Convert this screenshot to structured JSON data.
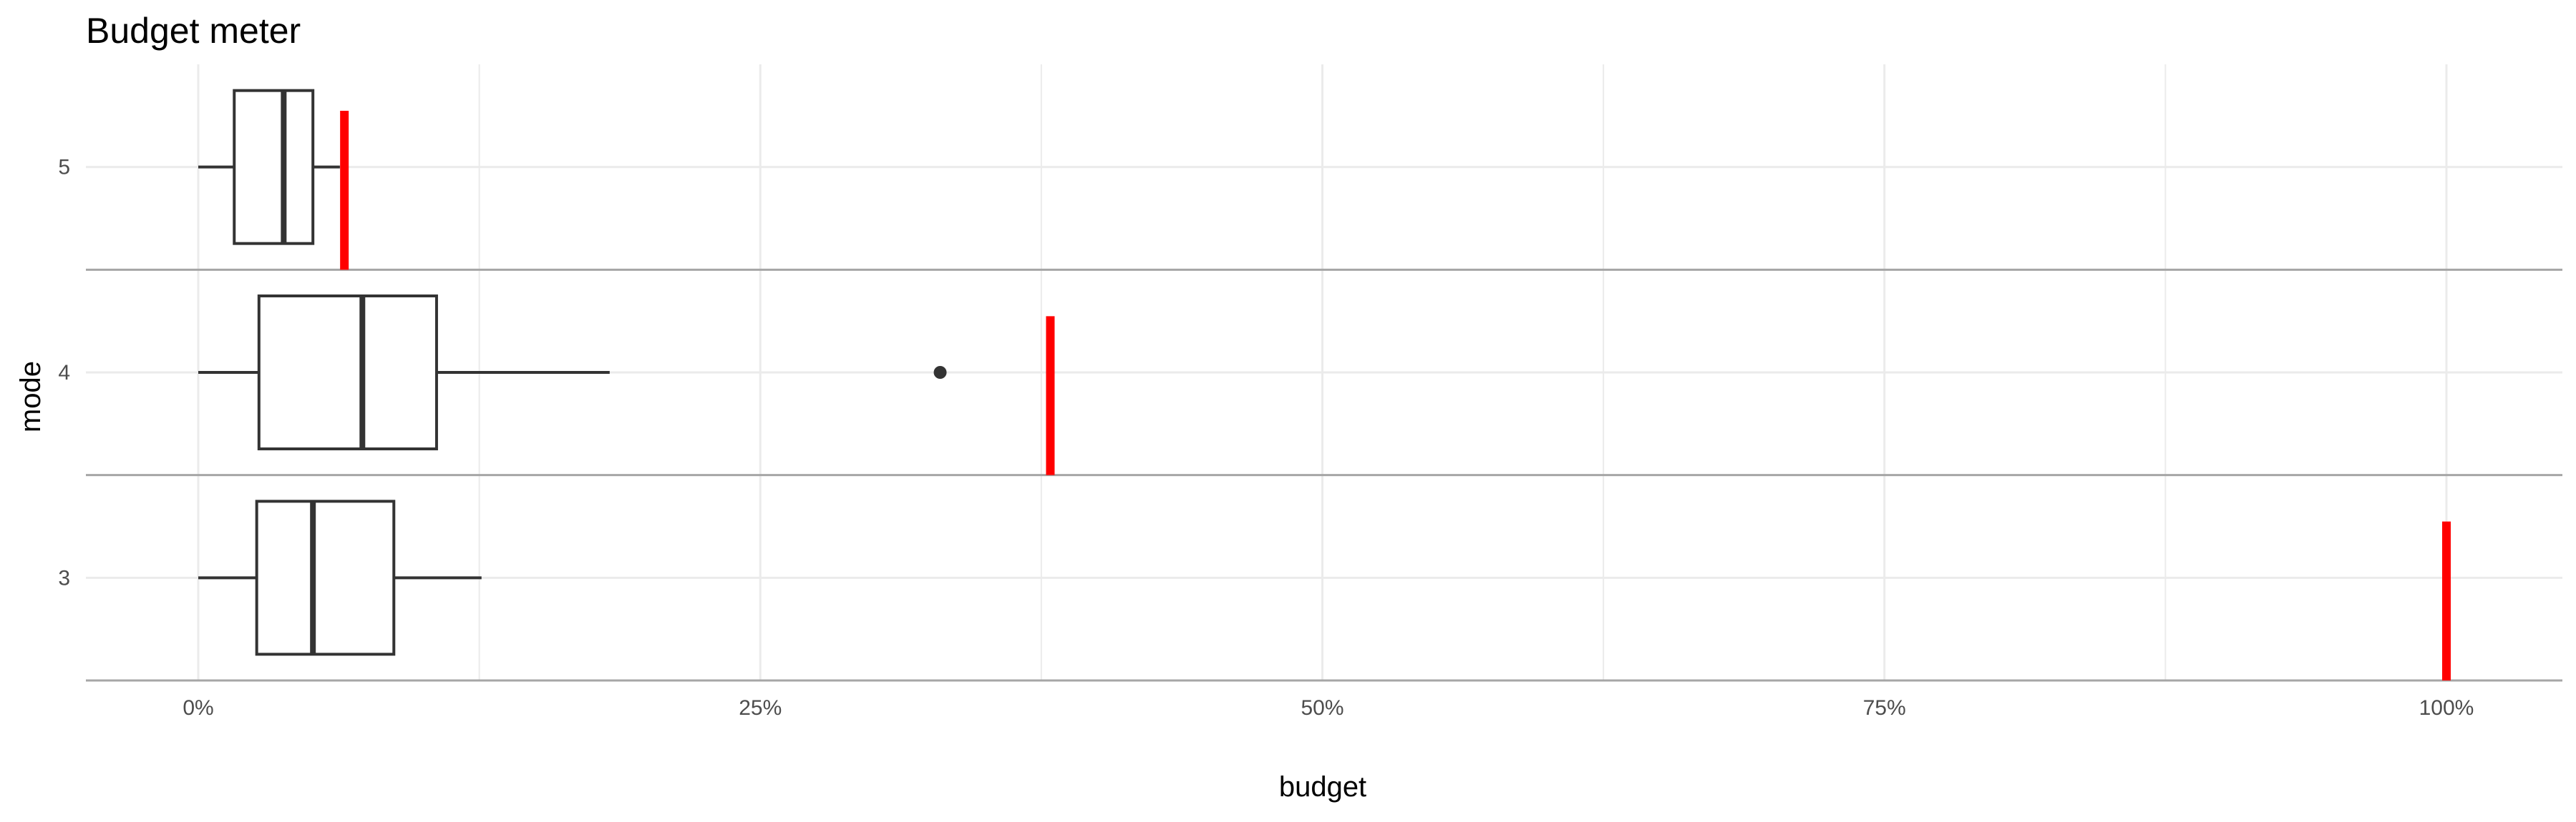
{
  "chart_data": {
    "type": "boxplot",
    "title": "Budget meter",
    "xlabel": "budget",
    "ylabel": "mode",
    "x_tick_labels": [
      "0%",
      "25%",
      "50%",
      "75%",
      "100%"
    ],
    "x_ticks": [
      0,
      0.25,
      0.5,
      0.75,
      1.0
    ],
    "xlim": [
      -0.05,
      1.05
    ],
    "grid": true,
    "categories": [
      "5",
      "4",
      "3"
    ],
    "boxes": [
      {
        "category": "5",
        "whisker_low": 0.0,
        "q1": 0.016,
        "median": 0.038,
        "q3": 0.051,
        "whisker_high": 0.063,
        "outliers": [],
        "budget_marker": 0.065
      },
      {
        "category": "4",
        "whisker_low": 0.0,
        "q1": 0.027,
        "median": 0.073,
        "q3": 0.106,
        "whisker_high": 0.183,
        "outliers": [
          0.33
        ],
        "budget_marker": 0.379
      },
      {
        "category": "3",
        "whisker_low": 0.0,
        "q1": 0.026,
        "median": 0.051,
        "q3": 0.087,
        "whisker_high": 0.126,
        "outliers": [],
        "budget_marker": 1.0
      }
    ],
    "colors": {
      "box_stroke": "#333333",
      "budget_marker": "#ff0000",
      "grid": "#ebebeb",
      "separator": "#a6a6a6"
    }
  }
}
